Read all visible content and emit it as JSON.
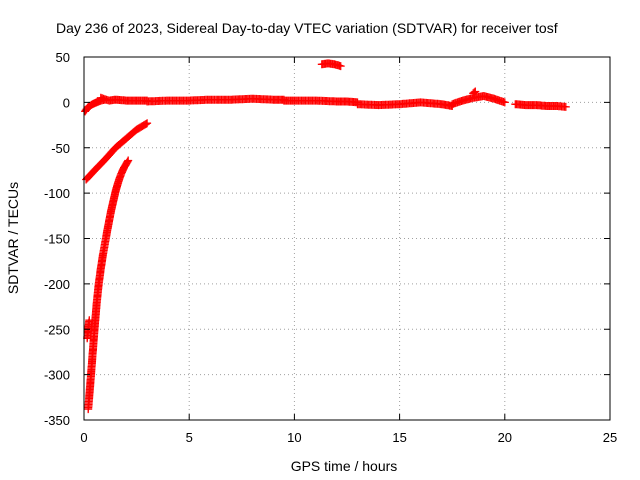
{
  "chart_data": {
    "type": "scatter",
    "title": "Day 236 of 2023, Sidereal Day-to-day VTEC variation (SDTVAR) for receiver tosf",
    "xlabel": "GPS time / hours",
    "ylabel": "SDTVAR / TECUs",
    "xlim": [
      0,
      25
    ],
    "ylim": [
      -350,
      50
    ],
    "xticks": [
      "0",
      "5",
      "10",
      "15",
      "20",
      "25"
    ],
    "yticks": [
      "50",
      "0",
      "-50",
      "-100",
      "-150",
      "-200",
      "-250",
      "-300",
      "-350"
    ],
    "grid": true,
    "marker": "plus",
    "series": [
      {
        "color": "#ff0000",
        "segments": [
          {
            "x": [
              0.05,
              0.2,
              0.4,
              0.6,
              0.8,
              1.0
            ],
            "y": [
              -10,
              -5,
              -2,
              0,
              2,
              3
            ]
          },
          {
            "x": [
              0.8,
              1.2,
              1.5,
              2.0,
              2.5,
              3.0
            ],
            "y": [
              5,
              2,
              3,
              2,
              2,
              2
            ]
          },
          {
            "x": [
              3.0,
              4.0,
              5.0,
              6.0,
              7.0,
              8.0,
              9.0,
              9.5
            ],
            "y": [
              1,
              2,
              2,
              3,
              3,
              4,
              3,
              3
            ]
          },
          {
            "x": [
              9.5,
              10.0,
              11.0,
              12.0,
              12.5,
              13.0
            ],
            "y": [
              2,
              2,
              2,
              1,
              1,
              0
            ]
          },
          {
            "x": [
              11.3,
              11.6,
              11.9,
              12.2
            ],
            "y": [
              42,
              43,
              42,
              40
            ]
          },
          {
            "x": [
              13.0,
              14.0,
              15.0,
              16.0,
              17.0,
              17.5
            ],
            "y": [
              -2,
              -3,
              -2,
              0,
              -2,
              -4
            ]
          },
          {
            "x": [
              17.5,
              18.0,
              18.5,
              19.0,
              19.5,
              20.0
            ],
            "y": [
              -2,
              2,
              5,
              7,
              4,
              0
            ]
          },
          {
            "x": [
              18.5,
              18.6
            ],
            "y": [
              10,
              12
            ]
          },
          {
            "x": [
              20.5,
              21.0,
              21.5,
              22.0,
              22.5,
              22.9
            ],
            "y": [
              -2,
              -3,
              -3,
              -4,
              -4,
              -5
            ]
          },
          {
            "x": [
              0.1,
              0.5,
              1.0,
              1.5,
              2.0,
              2.5,
              3.0
            ],
            "y": [
              -85,
              -75,
              -63,
              -50,
              -40,
              -30,
              -23
            ]
          },
          {
            "x": [
              0.2,
              0.3,
              0.4,
              0.5,
              0.6,
              0.7,
              0.8,
              0.9,
              1.0,
              1.1,
              1.2,
              1.3,
              1.4,
              1.5,
              1.6,
              1.7,
              1.8,
              1.9,
              2.0,
              2.1
            ],
            "y": [
              -338,
              -310,
              -280,
              -250,
              -222,
              -200,
              -183,
              -168,
              -155,
              -142,
              -130,
              -118,
              -108,
              -98,
              -90,
              -83,
              -77,
              -72,
              -68,
              -64
            ]
          },
          {
            "x": [
              0.15,
              0.25
            ],
            "y": [
              -260,
              -240
            ]
          }
        ]
      }
    ]
  }
}
